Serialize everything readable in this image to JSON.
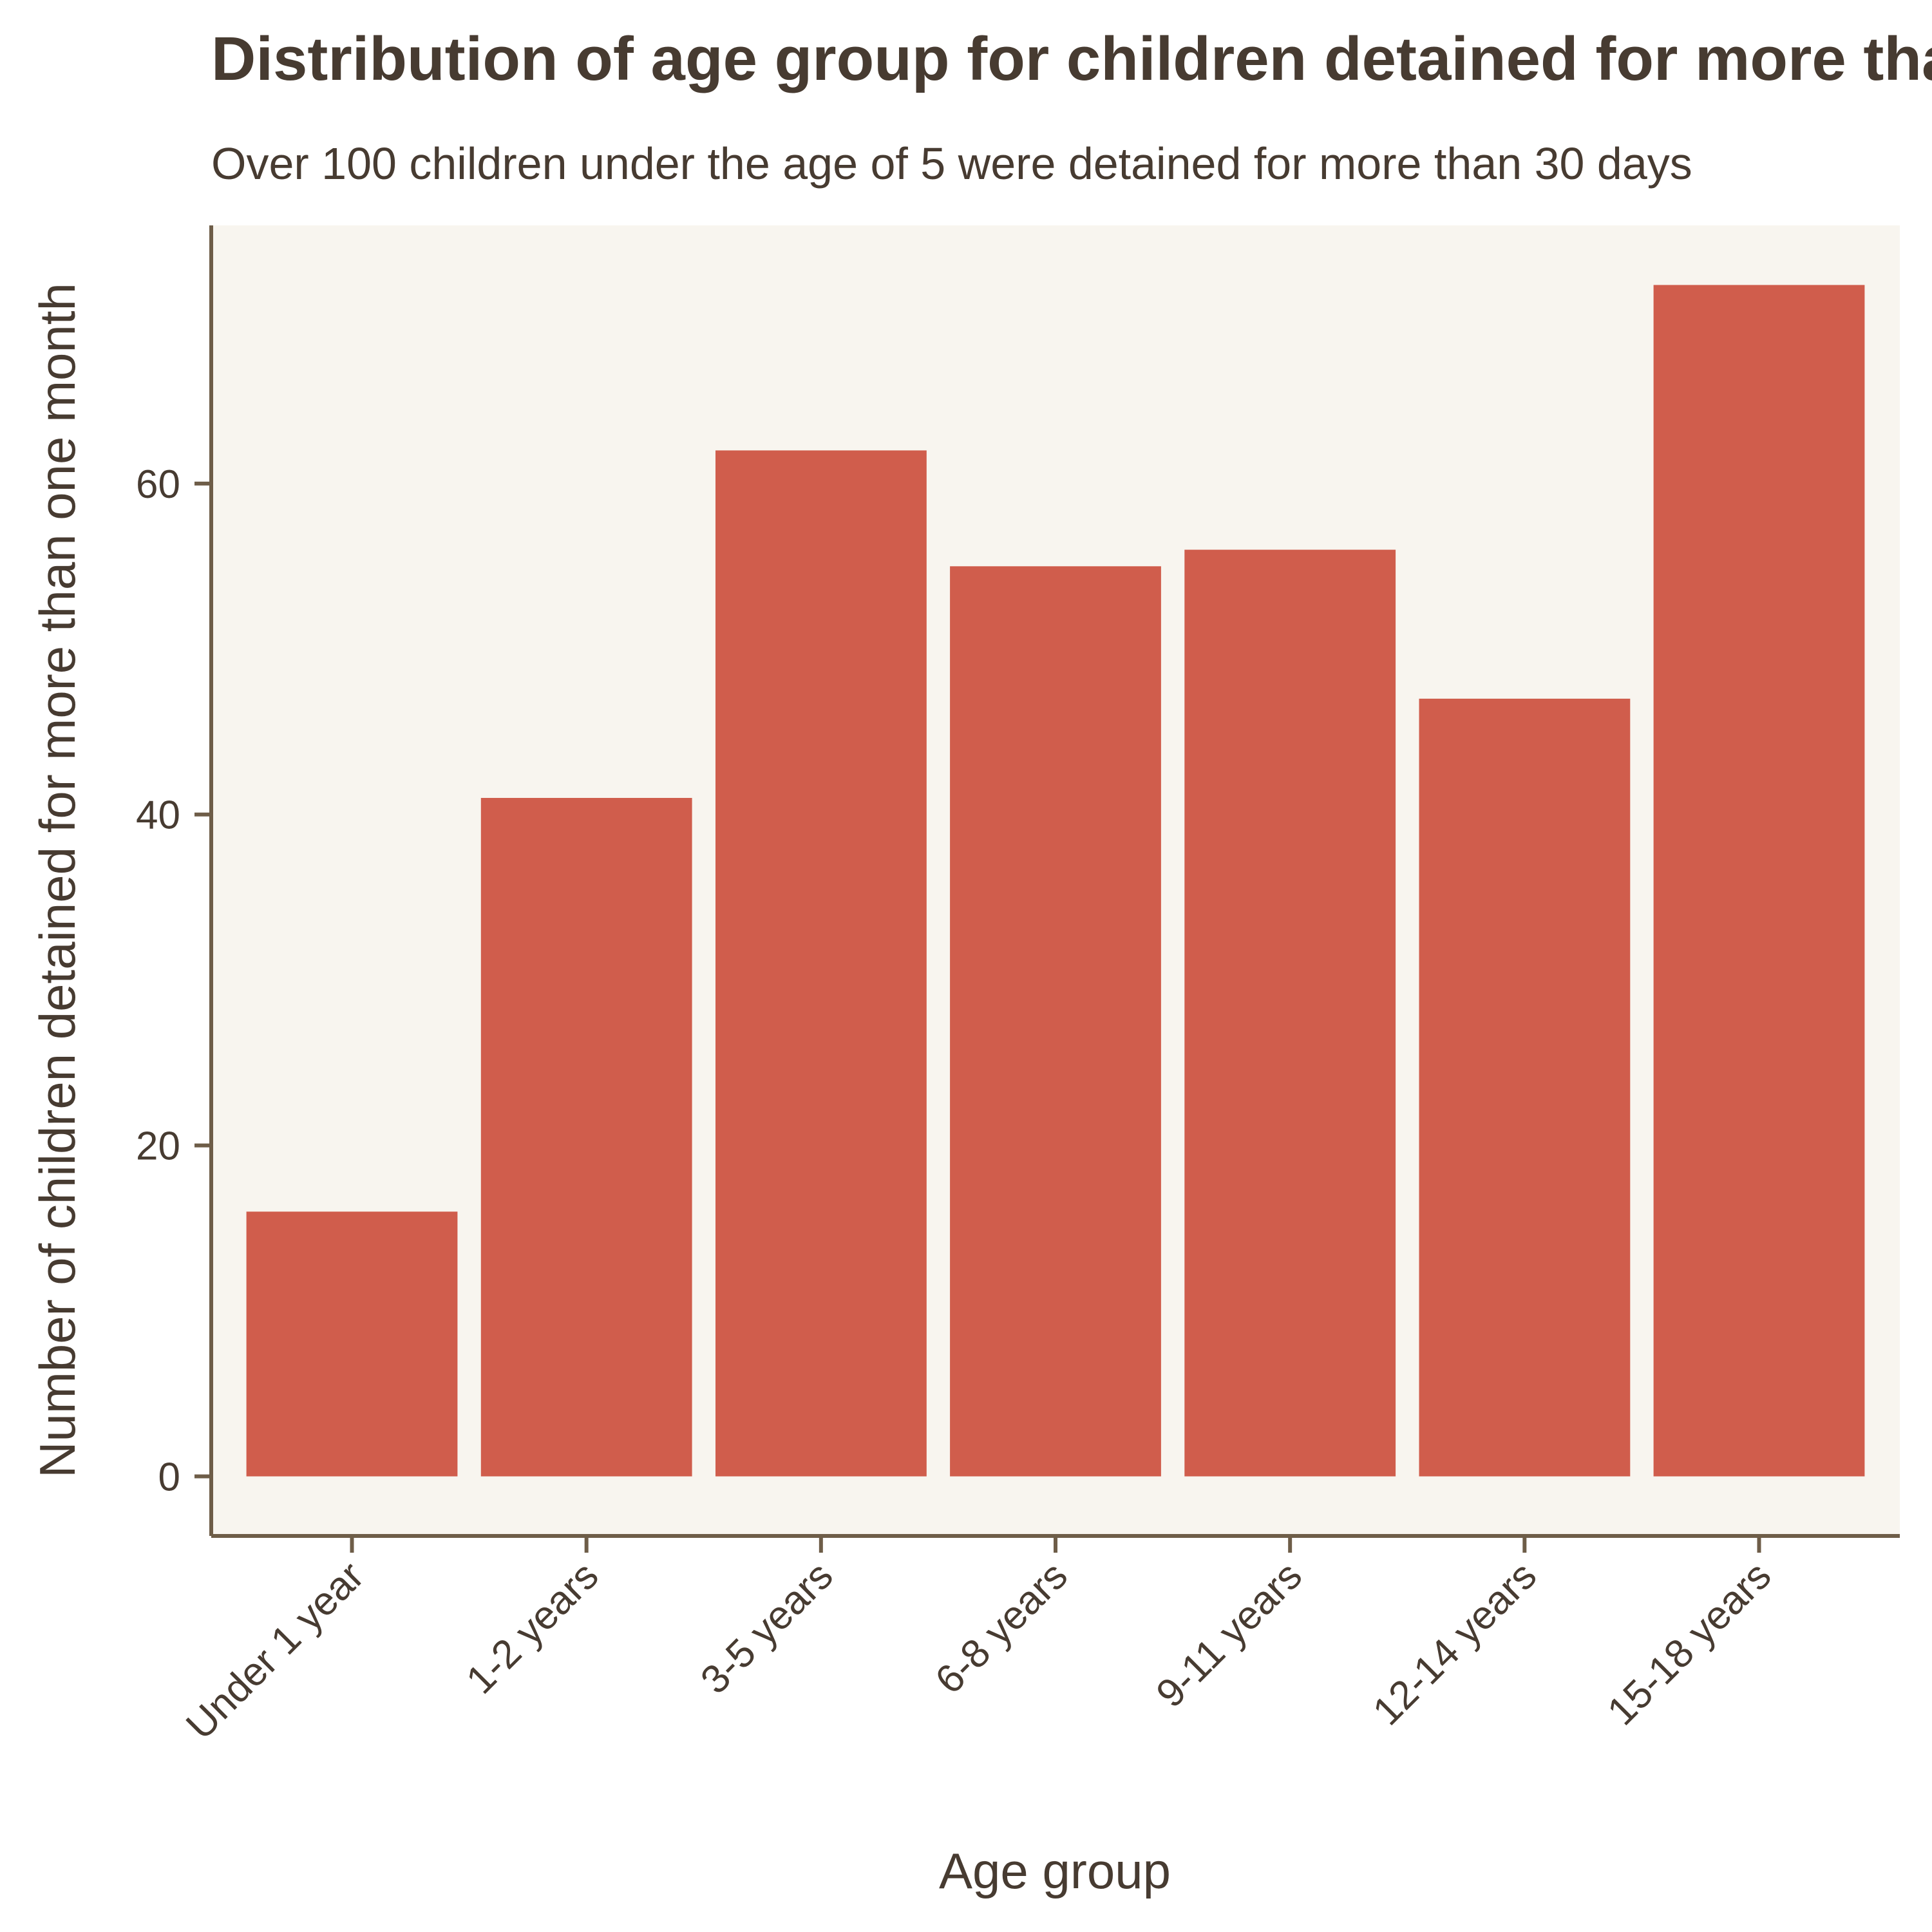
{
  "chart_data": {
    "type": "bar",
    "title": "Distribution of age group for children detained for more than one month",
    "subtitle": "Over 100 children under the age of 5 were detained for more than 30 days",
    "xlabel": "Age group",
    "ylabel": "Number of children detained for more than one month",
    "categories": [
      "Under 1 year",
      "1-2 years",
      "3-5 years",
      "6-8 years",
      "9-11 years",
      "12-14 years",
      "15-18 years"
    ],
    "values": [
      16,
      41,
      62,
      55,
      56,
      47,
      72
    ],
    "ylim": [
      -3.6,
      75.6
    ],
    "yticks": [
      0,
      20,
      40,
      60
    ],
    "ytick_labels": [
      "0",
      "20",
      "40",
      "60"
    ],
    "grid": false,
    "legend": "none",
    "colors": {
      "bar": "#d05d4c",
      "panel_background": "#f8f5ef",
      "axis": "#6e5d48",
      "text": "#473b31"
    }
  }
}
